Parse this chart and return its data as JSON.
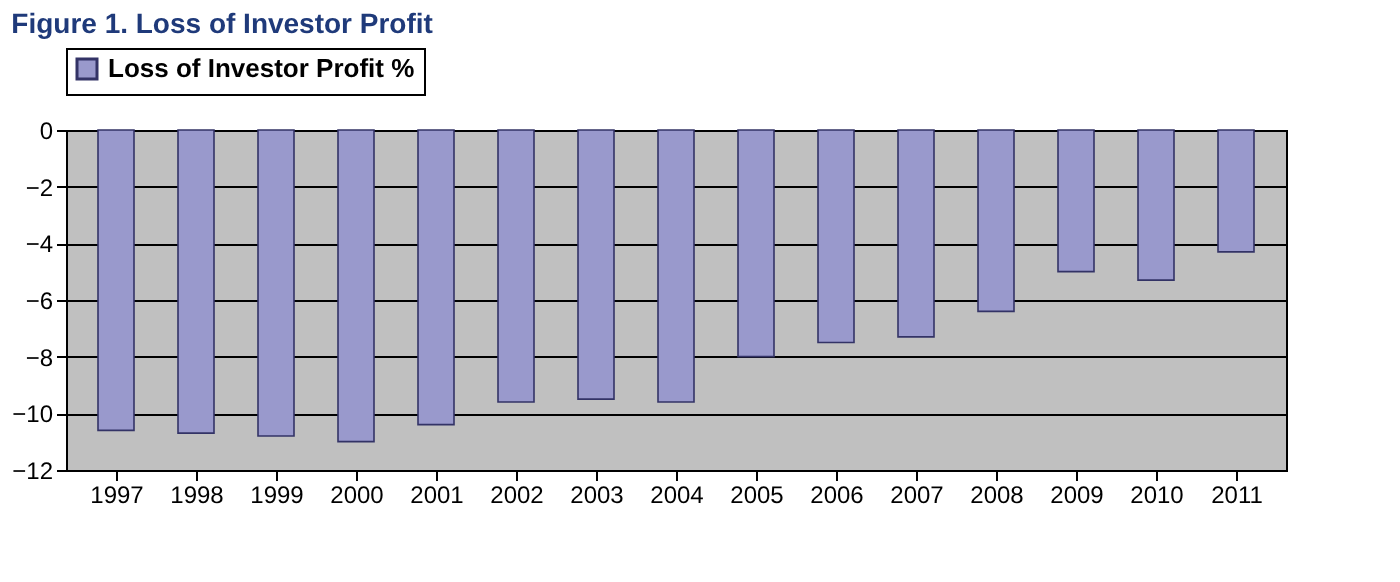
{
  "chart_data": {
    "type": "bar",
    "title": "Figure 1. Loss of Investor Profit",
    "categories": [
      "1997",
      "1998",
      "1999",
      "2000",
      "2001",
      "2002",
      "2003",
      "2004",
      "2005",
      "2006",
      "2007",
      "2008",
      "2009",
      "2010",
      "2011"
    ],
    "series": [
      {
        "name": "Loss of Investor Profit %",
        "color": "#9999cc",
        "values": [
          -10.6,
          -10.7,
          -10.8,
          -11.0,
          -10.4,
          -9.6,
          -9.5,
          -9.6,
          -8.0,
          -7.5,
          -7.3,
          -6.4,
          -5.0,
          -5.3,
          -4.3
        ]
      }
    ],
    "ylim": [
      -12,
      0
    ],
    "yticks": [
      -12,
      -10,
      -8,
      -6,
      -4,
      -2,
      0
    ],
    "grid": "y",
    "legend": "top"
  }
}
